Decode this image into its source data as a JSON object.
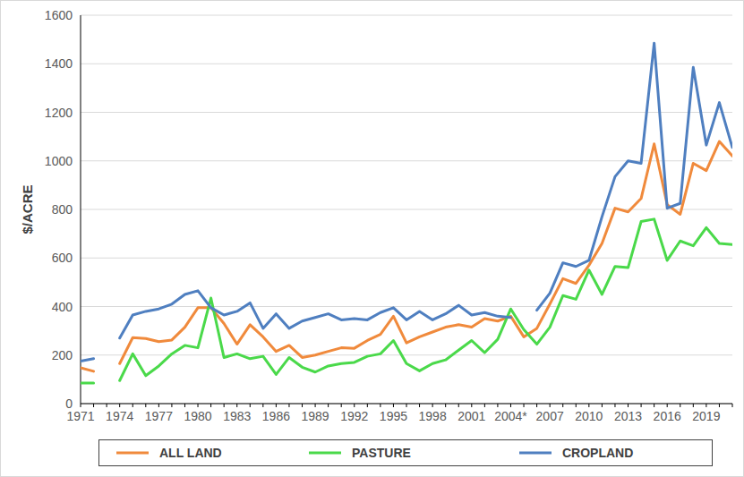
{
  "chart_data": {
    "type": "line",
    "y_label": "$/ACRE",
    "categories": [
      "1971",
      null,
      null,
      "1974",
      null,
      null,
      "1977",
      null,
      null,
      "1980",
      null,
      null,
      "1983",
      null,
      null,
      "1986",
      null,
      null,
      "1989",
      null,
      null,
      "1992",
      null,
      null,
      "1995",
      null,
      null,
      "1998",
      null,
      null,
      "2001",
      null,
      null,
      "2004*",
      null,
      null,
      "2007",
      null,
      null,
      "2010",
      null,
      null,
      "2013",
      null,
      null,
      "2016",
      null,
      null,
      "2019",
      null,
      null
    ],
    "series": [
      {
        "name": "ALL LAND",
        "color": "#f08a3c",
        "values": [
          148,
          133,
          null,
          165,
          272,
          268,
          255,
          262,
          315,
          395,
          395,
          330,
          245,
          325,
          275,
          215,
          240,
          190,
          200,
          215,
          230,
          228,
          260,
          285,
          360,
          250,
          275,
          295,
          315,
          325,
          315,
          350,
          340,
          360,
          275,
          310,
          410,
          515,
          495,
          570,
          660,
          805,
          790,
          845,
          1070,
          820,
          780,
          990,
          960,
          1080,
          1020
        ]
      },
      {
        "name": "PASTURE",
        "color": "#4ad94a",
        "values": [
          85,
          85,
          null,
          95,
          205,
          115,
          155,
          205,
          240,
          230,
          435,
          190,
          205,
          185,
          195,
          120,
          190,
          150,
          130,
          155,
          165,
          170,
          195,
          205,
          260,
          165,
          135,
          165,
          180,
          220,
          260,
          210,
          265,
          390,
          305,
          245,
          315,
          445,
          430,
          550,
          450,
          565,
          560,
          750,
          760,
          590,
          670,
          650,
          725,
          660,
          655
        ]
      },
      {
        "name": "CROPLAND",
        "color": "#4f7fc0",
        "values": [
          175,
          185,
          null,
          270,
          365,
          380,
          390,
          410,
          450,
          465,
          395,
          365,
          380,
          415,
          310,
          370,
          310,
          340,
          355,
          370,
          345,
          350,
          345,
          375,
          395,
          345,
          380,
          345,
          370,
          405,
          365,
          375,
          360,
          355,
          null,
          385,
          455,
          580,
          565,
          590,
          770,
          935,
          1000,
          990,
          1485,
          805,
          825,
          1385,
          1065,
          1240,
          1055
        ]
      }
    ],
    "ylim": [
      0,
      1600
    ],
    "yticks": [
      0,
      200,
      400,
      600,
      800,
      1000,
      1200,
      1400,
      1600
    ],
    "grid": true,
    "legend": "bottom"
  }
}
